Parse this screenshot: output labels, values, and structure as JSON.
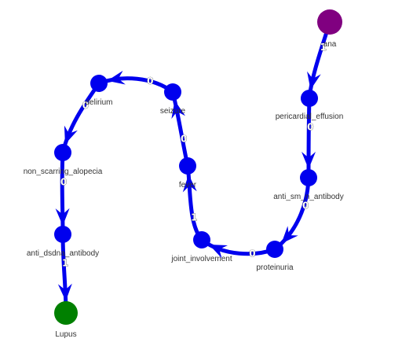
{
  "colors": {
    "edge": "#0000ee",
    "node": "#0000ee",
    "start_node": "#800080",
    "end_node": "#008000"
  },
  "nodes": [
    {
      "id": "ana",
      "label": "ana",
      "role": "start"
    },
    {
      "id": "pericardial_effusion",
      "label": "pericardial_effusion",
      "role": "normal"
    },
    {
      "id": "anti_sm_antibody",
      "label": "anti_sm_n_antibody",
      "role": "normal"
    },
    {
      "id": "proteinuria",
      "label": "proteinuria",
      "role": "normal"
    },
    {
      "id": "joint_involvement",
      "label": "joint_involvement",
      "role": "normal"
    },
    {
      "id": "fever",
      "label": "fever",
      "role": "normal"
    },
    {
      "id": "seizure",
      "label": "seizure",
      "role": "normal"
    },
    {
      "id": "delirium",
      "label": "delirium",
      "role": "normal"
    },
    {
      "id": "non_scarring_alopecia",
      "label": "non_scarring_alopecia",
      "role": "normal"
    },
    {
      "id": "anti_dsdna_antibody",
      "label": "anti_dsdna_antibody",
      "role": "normal"
    },
    {
      "id": "lupus",
      "label": "Lupus",
      "role": "end"
    }
  ],
  "edges": [
    {
      "source": "ana",
      "target": "pericardial_effusion",
      "label": "1"
    },
    {
      "source": "pericardial_effusion",
      "target": "anti_sm_antibody",
      "label": "0"
    },
    {
      "source": "anti_sm_antibody",
      "target": "proteinuria",
      "label": "0"
    },
    {
      "source": "proteinuria",
      "target": "joint_involvement",
      "label": "0"
    },
    {
      "source": "joint_involvement",
      "target": "fever",
      "label": "1"
    },
    {
      "source": "fever",
      "target": "seizure",
      "label": "0"
    },
    {
      "source": "seizure",
      "target": "delirium",
      "label": "0"
    },
    {
      "source": "delirium",
      "target": "non_scarring_alopecia",
      "label": "0"
    },
    {
      "source": "non_scarring_alopecia",
      "target": "anti_dsdna_antibody",
      "label": "0"
    },
    {
      "source": "anti_dsdna_antibody",
      "target": "lupus",
      "label": "1"
    }
  ]
}
